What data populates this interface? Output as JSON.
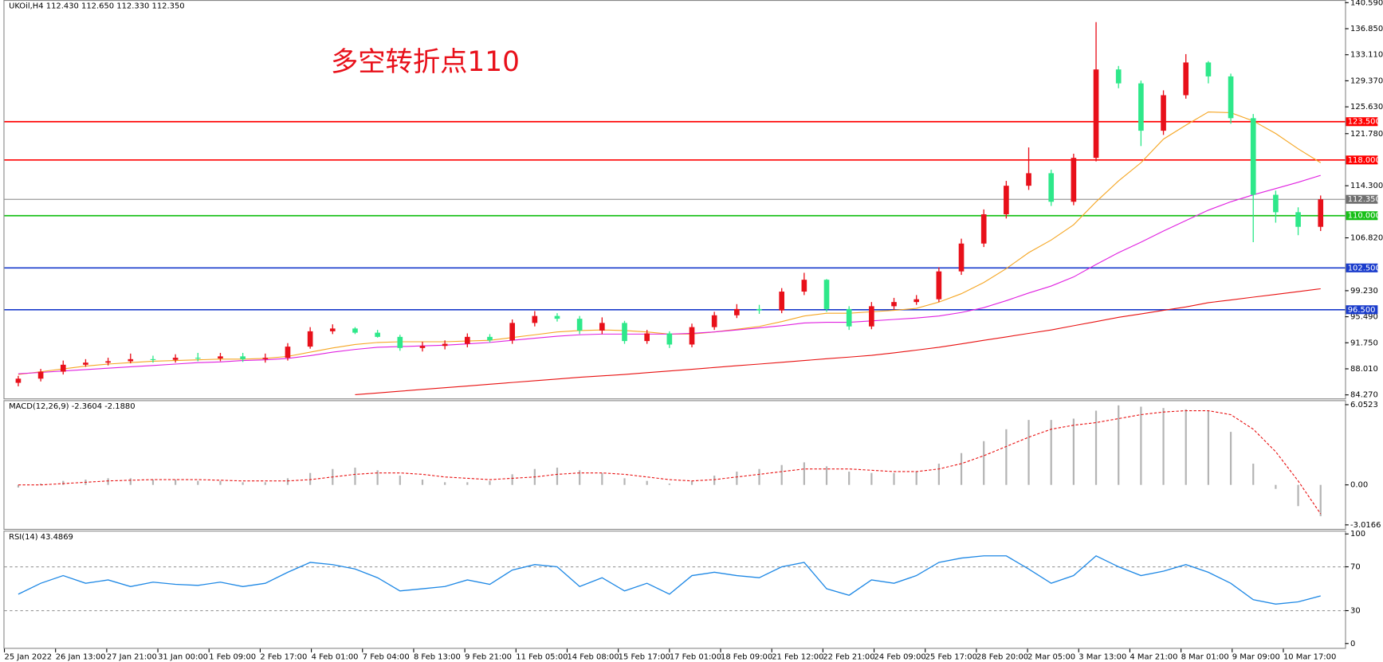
{
  "chart_data": [
    {
      "type": "candlestick",
      "title": "UKOil,H4  112.430 112.650 112.330 112.350",
      "annotation": "多空转折点110",
      "up_color": "#e8101a",
      "down_color": "#2ee88a",
      "open": [
        86.0,
        86.6,
        87.6,
        88.6,
        88.9,
        89.1,
        89.4,
        89.3,
        89.6,
        89.5,
        89.8,
        89.4,
        89.6,
        91.2,
        93.4,
        93.8,
        93.2,
        92.6,
        91.0,
        91.3,
        91.6,
        92.6,
        92.1,
        94.6,
        95.6,
        95.2,
        93.5,
        94.6,
        92.0,
        93.1,
        91.5,
        94.0,
        95.7,
        96.6,
        96.4,
        99.1,
        100.8,
        96.6,
        94.1,
        97.0,
        97.6,
        98.0,
        102.0,
        106.0,
        110.2,
        114.3,
        116.1,
        112.0,
        118.3,
        131.0,
        129.0,
        122.2,
        127.3,
        132.0,
        130.0,
        124.0,
        113.0,
        110.5,
        108.4
      ],
      "high": [
        87.0,
        88.0,
        89.2,
        89.4,
        89.6,
        90.2,
        89.9,
        90.1,
        90.3,
        90.3,
        90.3,
        90.2,
        91.7,
        94.0,
        94.4,
        94.0,
        93.6,
        92.9,
        91.9,
        92.1,
        93.1,
        93.0,
        95.1,
        96.3,
        96.0,
        95.6,
        95.4,
        94.9,
        93.6,
        93.4,
        94.5,
        96.2,
        97.3,
        97.2,
        99.6,
        101.8,
        100.9,
        97.0,
        97.6,
        98.2,
        98.6,
        102.6,
        106.7,
        110.9,
        115.0,
        119.8,
        116.6,
        118.9,
        137.8,
        131.5,
        129.4,
        128.0,
        133.2,
        132.2,
        130.4,
        124.6,
        113.6,
        111.2,
        112.9
      ],
      "low": [
        85.5,
        86.2,
        87.2,
        88.3,
        88.5,
        88.8,
        88.9,
        88.9,
        89.1,
        89.1,
        89.0,
        88.9,
        89.2,
        90.9,
        93.0,
        93.0,
        92.5,
        90.6,
        90.5,
        90.8,
        91.1,
        91.8,
        91.6,
        94.1,
        94.8,
        93.0,
        93.0,
        91.6,
        91.6,
        91.0,
        91.1,
        93.6,
        95.3,
        95.9,
        96.0,
        98.6,
        96.2,
        93.6,
        93.7,
        96.5,
        97.2,
        97.6,
        101.5,
        105.5,
        109.6,
        113.7,
        111.4,
        111.5,
        117.8,
        128.3,
        120.0,
        121.6,
        126.8,
        129.0,
        123.2,
        106.2,
        109.0,
        107.2,
        107.8
      ],
      "close": [
        86.6,
        87.6,
        88.6,
        88.9,
        89.1,
        89.4,
        89.3,
        89.6,
        89.5,
        89.8,
        89.4,
        89.6,
        91.2,
        93.4,
        93.8,
        93.2,
        92.6,
        91.0,
        91.3,
        91.6,
        92.6,
        92.1,
        94.6,
        95.6,
        95.2,
        93.5,
        94.6,
        92.0,
        93.1,
        91.5,
        94.0,
        95.7,
        96.6,
        96.4,
        99.1,
        100.8,
        96.6,
        94.1,
        97.0,
        97.6,
        98.0,
        102.0,
        106.0,
        110.2,
        114.3,
        116.1,
        112.0,
        118.3,
        131.0,
        129.0,
        122.2,
        127.3,
        132.0,
        130.0,
        124.0,
        113.0,
        110.5,
        108.4,
        112.35
      ],
      "lines": [
        {
          "color": "#f5a623",
          "values": [
            87.2,
            87.6,
            88.0,
            88.4,
            88.7,
            88.9,
            89.1,
            89.2,
            89.3,
            89.4,
            89.4,
            89.5,
            89.8,
            90.4,
            91.0,
            91.5,
            91.8,
            91.9,
            91.9,
            91.9,
            92.0,
            92.1,
            92.5,
            92.9,
            93.3,
            93.5,
            93.6,
            93.5,
            93.3,
            93.0,
            93.0,
            93.3,
            93.7,
            94.1,
            94.8,
            95.6,
            96.0,
            96.0,
            96.2,
            96.4,
            96.7,
            97.6,
            98.8,
            100.4,
            102.4,
            104.7,
            106.5,
            108.7,
            112.0,
            115.0,
            117.6,
            121.0,
            123.0,
            124.9,
            124.8,
            123.6,
            121.8,
            119.6,
            117.6
          ]
        },
        {
          "color": "#e020e0",
          "values": [
            87.3,
            87.5,
            87.7,
            87.9,
            88.1,
            88.3,
            88.5,
            88.7,
            88.9,
            89.0,
            89.2,
            89.3,
            89.5,
            89.9,
            90.4,
            90.8,
            91.1,
            91.2,
            91.3,
            91.4,
            91.6,
            91.8,
            92.1,
            92.4,
            92.7,
            92.9,
            93.0,
            93.0,
            93.0,
            93.0,
            93.1,
            93.3,
            93.6,
            93.9,
            94.2,
            94.6,
            94.7,
            94.7,
            94.9,
            95.1,
            95.3,
            95.6,
            96.1,
            96.8,
            97.8,
            98.9,
            99.9,
            101.2,
            103.0,
            104.7,
            106.2,
            107.8,
            109.3,
            110.8,
            112.0,
            113.0,
            113.9,
            114.8,
            115.8
          ]
        },
        {
          "color": "#e81010",
          "values": [
            null,
            null,
            null,
            null,
            null,
            null,
            null,
            null,
            null,
            null,
            null,
            null,
            null,
            null,
            null,
            84.3,
            84.55,
            84.8,
            85.05,
            85.3,
            85.55,
            85.8,
            86.05,
            86.3,
            86.55,
            86.8,
            87.0,
            87.2,
            87.45,
            87.7,
            87.95,
            88.2,
            88.45,
            88.7,
            88.95,
            89.2,
            89.45,
            89.7,
            89.95,
            90.3,
            90.7,
            91.1,
            91.6,
            92.1,
            92.6,
            93.1,
            93.6,
            94.2,
            94.8,
            95.4,
            95.9,
            96.4,
            96.9,
            97.5,
            97.9,
            98.3,
            98.7,
            99.1,
            99.5
          ]
        }
      ],
      "levels": [
        {
          "value": 123.5,
          "label": "123.500",
          "color": "#ff0000"
        },
        {
          "value": 118.0,
          "label": "118.000",
          "color": "#ff0000"
        },
        {
          "value": 112.35,
          "label": "112.350",
          "color": "#707070"
        },
        {
          "value": 110.0,
          "label": "110.000",
          "color": "#18c018"
        },
        {
          "value": 102.5,
          "label": "102.500",
          "color": "#1a3ccc"
        },
        {
          "value": 96.5,
          "label": "96.500",
          "color": "#1a3ccc"
        }
      ],
      "ylim": [
        83.76,
        140.97
      ],
      "yticks": [
        {
          "value": 84.27,
          "label": "84.270"
        },
        {
          "value": 88.01,
          "label": "88.010"
        },
        {
          "value": 91.75,
          "label": "91.750"
        },
        {
          "value": 95.49,
          "label": "95.490"
        },
        {
          "value": 99.23,
          "label": "99.230"
        },
        {
          "value": 106.82,
          "label": "106.820"
        },
        {
          "value": 114.3,
          "label": "114.300"
        },
        {
          "value": 121.78,
          "label": "121.780"
        },
        {
          "value": 125.63,
          "label": "125.630"
        },
        {
          "value": 129.37,
          "label": "129.370"
        },
        {
          "value": 133.11,
          "label": "133.110"
        },
        {
          "value": 136.85,
          "label": "136.850"
        },
        {
          "value": 140.59,
          "label": "140.590"
        }
      ]
    },
    {
      "type": "macd",
      "title": "MACD(12,26,9) -2.3604 -2.1880",
      "hist_color": "#b4b4b4",
      "signal_color": "#e81010",
      "histogram": [
        -0.2,
        0.1,
        0.3,
        0.4,
        0.5,
        0.5,
        0.4,
        0.4,
        0.3,
        0.3,
        0.2,
        0.2,
        0.5,
        0.9,
        1.2,
        1.3,
        1.1,
        0.7,
        0.4,
        0.2,
        0.2,
        0.3,
        0.8,
        1.2,
        1.3,
        1.1,
        0.9,
        0.5,
        0.3,
        0.1,
        0.3,
        0.7,
        1.0,
        1.2,
        1.5,
        1.7,
        1.4,
        1.0,
        0.9,
        0.9,
        1.0,
        1.6,
        2.4,
        3.3,
        4.2,
        4.9,
        4.9,
        5.0,
        5.6,
        6.0,
        5.9,
        5.8,
        5.7,
        5.6,
        4.0,
        1.6,
        -0.3,
        -1.6,
        -2.3604
      ],
      "signal": [
        0.0,
        0.0,
        0.1,
        0.2,
        0.3,
        0.35,
        0.4,
        0.4,
        0.4,
        0.35,
        0.3,
        0.3,
        0.3,
        0.4,
        0.6,
        0.8,
        0.9,
        0.9,
        0.8,
        0.6,
        0.5,
        0.4,
        0.5,
        0.6,
        0.8,
        0.9,
        0.9,
        0.8,
        0.6,
        0.4,
        0.3,
        0.4,
        0.6,
        0.8,
        1.0,
        1.2,
        1.2,
        1.2,
        1.1,
        1.0,
        1.0,
        1.2,
        1.6,
        2.2,
        2.9,
        3.6,
        4.2,
        4.5,
        4.7,
        5.0,
        5.3,
        5.5,
        5.6,
        5.6,
        5.3,
        4.2,
        2.5,
        0.3,
        -2.188
      ],
      "ylim": [
        -3.32,
        6.39
      ],
      "yticks": [
        6.0523,
        {
          "value": 0,
          "label": "0.00"
        },
        -3.0166
      ]
    },
    {
      "type": "line",
      "title": "RSI(14) 43.4869",
      "color": "#1e88e5",
      "values": [
        45,
        55,
        62,
        55,
        58,
        52,
        56,
        54,
        53,
        56,
        52,
        55,
        65,
        74,
        72,
        68,
        60,
        48,
        50,
        52,
        58,
        54,
        67,
        72,
        70,
        52,
        60,
        48,
        55,
        45,
        62,
        65,
        62,
        60,
        70,
        74,
        50,
        44,
        58,
        55,
        62,
        74,
        78,
        80,
        80,
        68,
        55,
        62,
        80,
        70,
        62,
        66,
        72,
        65,
        55,
        40,
        36,
        38,
        43.4869
      ],
      "ylim": [
        -4,
        103
      ],
      "yticks": [
        100,
        70,
        30,
        0
      ],
      "grid": true
    }
  ],
  "time_axis": [
    "25 Jan 2022",
    "26 Jan 13:00",
    "27 Jan 21:00",
    "31 Jan 00:00",
    "1 Feb 09:00",
    "2 Feb 17:00",
    "4 Feb 01:00",
    "7 Feb 04:00",
    "8 Feb 13:00",
    "9 Feb 21:00",
    "11 Feb 05:00",
    "14 Feb 08:00",
    "15 Feb 17:00",
    "17 Feb 01:00",
    "18 Feb 09:00",
    "21 Feb 12:00",
    "22 Feb 21:00",
    "24 Feb 09:00",
    "25 Feb 17:00",
    "28 Feb 20:00",
    "2 Mar 05:00",
    "3 Mar 13:00",
    "4 Mar 21:00",
    "8 Mar 01:00",
    "9 Mar 09:00",
    "10 Mar 17:00"
  ]
}
